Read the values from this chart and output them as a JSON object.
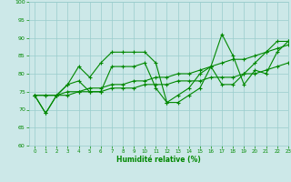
{
  "xlabel": "Humidité relative (%)",
  "xlim": [
    -0.5,
    23
  ],
  "ylim": [
    60,
    100
  ],
  "yticks": [
    60,
    65,
    70,
    75,
    80,
    85,
    90,
    95,
    100
  ],
  "xticks": [
    0,
    1,
    2,
    3,
    4,
    5,
    6,
    7,
    8,
    9,
    10,
    11,
    12,
    13,
    14,
    15,
    16,
    17,
    18,
    19,
    20,
    21,
    22,
    23
  ],
  "bg_color": "#cce8e8",
  "grid_color": "#99cccc",
  "line_color": "#008800",
  "series": [
    [
      74,
      69,
      74,
      77,
      82,
      79,
      83,
      86,
      86,
      86,
      86,
      83,
      72,
      72,
      74,
      76,
      82,
      91,
      85,
      77,
      81,
      80,
      86,
      89
    ],
    [
      74,
      69,
      74,
      77,
      78,
      75,
      75,
      82,
      82,
      82,
      83,
      76,
      72,
      74,
      76,
      80,
      82,
      77,
      77,
      80,
      83,
      86,
      89,
      89
    ],
    [
      74,
      74,
      74,
      75,
      75,
      76,
      76,
      77,
      77,
      78,
      78,
      79,
      79,
      80,
      80,
      81,
      82,
      83,
      84,
      84,
      85,
      86,
      87,
      88
    ],
    [
      74,
      74,
      74,
      74,
      75,
      75,
      75,
      76,
      76,
      76,
      77,
      77,
      77,
      78,
      78,
      78,
      79,
      79,
      79,
      80,
      80,
      81,
      82,
      83
    ]
  ]
}
